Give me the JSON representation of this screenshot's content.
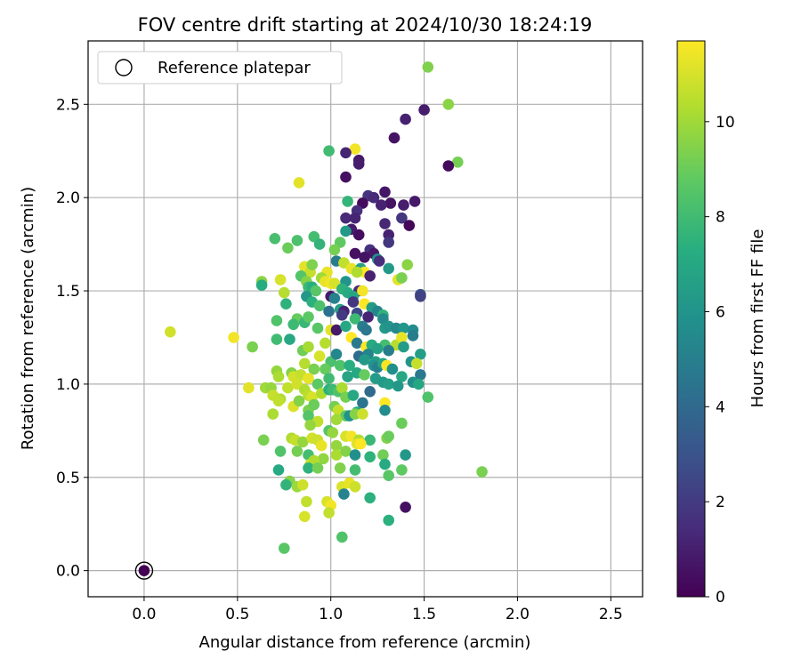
{
  "chart_data": {
    "type": "scatter",
    "title": "FOV centre drift starting at 2024/10/30 18:24:19",
    "xlabel": "Angular distance from reference (arcmin)",
    "ylabel": "Rotation from reference (arcmin)",
    "xlim": [
      -0.3,
      2.67
    ],
    "ylim": [
      -0.14,
      2.84
    ],
    "xticks": [
      0.0,
      0.5,
      1.0,
      1.5,
      2.0,
      2.5
    ],
    "xtick_labels": [
      "0.0",
      "0.5",
      "1.0",
      "1.5",
      "2.0",
      "2.5"
    ],
    "yticks": [
      0.0,
      0.5,
      1.0,
      1.5,
      2.0,
      2.5
    ],
    "ytick_labels": [
      "0.0",
      "0.5",
      "1.0",
      "1.5",
      "2.0",
      "2.5"
    ],
    "grid": true,
    "legend": {
      "position": "upper left",
      "entries": [
        "Reference platepar"
      ]
    },
    "colorbar": {
      "label": "Hours from first FF file",
      "range": [
        0,
        11.7
      ],
      "ticks": [
        0,
        2,
        4,
        6,
        8,
        10
      ],
      "tick_labels": [
        "0",
        "2",
        "4",
        "6",
        "8",
        "10"
      ],
      "colormap": "viridis"
    },
    "reference_point": {
      "x": 0.0,
      "y": 0.0,
      "c": 0.0
    },
    "points": [
      [
        1.52,
        2.7,
        9.4
      ],
      [
        1.63,
        2.5,
        9.6
      ],
      [
        1.68,
        2.19,
        9.2
      ],
      [
        1.63,
        2.17,
        0.3
      ],
      [
        1.5,
        2.47,
        0.9
      ],
      [
        1.4,
        2.42,
        1.1
      ],
      [
        1.34,
        2.32,
        0.6
      ],
      [
        1.13,
        2.26,
        11.5
      ],
      [
        0.99,
        2.25,
        8.0
      ],
      [
        1.08,
        2.24,
        1.2
      ],
      [
        1.15,
        2.2,
        0.8
      ],
      [
        1.15,
        2.18,
        0.9
      ],
      [
        1.08,
        2.11,
        0.5
      ],
      [
        0.83,
        2.08,
        11.2
      ],
      [
        1.2,
        2.01,
        1.7
      ],
      [
        1.23,
        2.0,
        1.4
      ],
      [
        1.29,
        2.03,
        0.7
      ],
      [
        1.32,
        1.97,
        0.6
      ],
      [
        1.45,
        1.98,
        0.8
      ],
      [
        1.27,
        1.96,
        1.1
      ],
      [
        1.17,
        1.97,
        0.3
      ],
      [
        1.14,
        1.93,
        1.6
      ],
      [
        1.09,
        1.98,
        7.7
      ],
      [
        1.39,
        1.96,
        0.9
      ],
      [
        1.38,
        1.89,
        1.8
      ],
      [
        1.08,
        1.89,
        1.4
      ],
      [
        1.13,
        1.89,
        1.2
      ],
      [
        1.29,
        1.86,
        1.3
      ],
      [
        1.42,
        1.85,
        0.2
      ],
      [
        1.11,
        1.83,
        0.9
      ],
      [
        1.31,
        1.8,
        1.1
      ],
      [
        1.15,
        1.8,
        0.4
      ],
      [
        1.31,
        1.76,
        1.9
      ],
      [
        1.08,
        1.82,
        6.3
      ],
      [
        0.91,
        1.79,
        8.1
      ],
      [
        0.94,
        1.75,
        7.6
      ],
      [
        0.82,
        1.77,
        8.3
      ],
      [
        0.7,
        1.78,
        8.2
      ],
      [
        0.77,
        1.73,
        9.0
      ],
      [
        1.05,
        1.76,
        8.8
      ],
      [
        1.02,
        1.72,
        9.2
      ],
      [
        1.21,
        1.72,
        1.7
      ],
      [
        1.23,
        1.7,
        0.8
      ],
      [
        1.13,
        1.7,
        0.5
      ],
      [
        1.25,
        1.67,
        5.9
      ],
      [
        1.18,
        1.68,
        0.6
      ],
      [
        1.26,
        1.66,
        1.5
      ],
      [
        1.03,
        1.66,
        4.9
      ],
      [
        1.07,
        1.65,
        10.6
      ],
      [
        1.11,
        1.62,
        11.3
      ],
      [
        1.16,
        1.62,
        6.6
      ],
      [
        1.18,
        1.6,
        11.9
      ],
      [
        1.31,
        1.62,
        6.3
      ],
      [
        1.14,
        1.6,
        10.3
      ],
      [
        0.86,
        1.63,
        11.2
      ],
      [
        0.89,
        1.6,
        10.7
      ],
      [
        0.9,
        1.64,
        9.4
      ],
      [
        0.98,
        1.6,
        11.3
      ],
      [
        1.21,
        1.58,
        1.1
      ],
      [
        1.41,
        1.64,
        9.6
      ],
      [
        1.36,
        1.56,
        11.2
      ],
      [
        1.38,
        1.57,
        9.3
      ],
      [
        1.08,
        1.55,
        6.0
      ],
      [
        0.84,
        1.58,
        8.5
      ],
      [
        0.87,
        1.55,
        9.5
      ],
      [
        0.95,
        1.57,
        10.0
      ],
      [
        0.97,
        1.55,
        11.3
      ],
      [
        1.0,
        1.54,
        11.5
      ],
      [
        1.02,
        1.54,
        11.0
      ],
      [
        0.73,
        1.56,
        11.0
      ],
      [
        0.63,
        1.55,
        9.6
      ],
      [
        0.63,
        1.53,
        7.2
      ],
      [
        0.88,
        1.52,
        7.9
      ],
      [
        0.9,
        1.52,
        7.3
      ],
      [
        0.92,
        1.5,
        8.6
      ],
      [
        0.75,
        1.49,
        10.4
      ],
      [
        1.15,
        1.5,
        1.4
      ],
      [
        1.06,
        1.51,
        7.5
      ],
      [
        1.09,
        1.49,
        7.2
      ],
      [
        1.12,
        1.47,
        6.8
      ],
      [
        1.17,
        1.5,
        11.5
      ],
      [
        1.0,
        1.47,
        0.8
      ],
      [
        1.02,
        1.46,
        5.1
      ],
      [
        1.48,
        1.48,
        2.8
      ],
      [
        1.48,
        1.47,
        2.3
      ],
      [
        0.87,
        1.47,
        6.2
      ],
      [
        0.9,
        1.44,
        7.4
      ],
      [
        1.12,
        1.44,
        1.8
      ],
      [
        1.18,
        1.43,
        11.8
      ],
      [
        0.94,
        1.42,
        8.3
      ],
      [
        0.76,
        1.43,
        7.5
      ],
      [
        1.05,
        1.4,
        6.6
      ],
      [
        1.07,
        1.39,
        1.1
      ],
      [
        1.14,
        1.38,
        2.6
      ],
      [
        1.22,
        1.41,
        6.3
      ],
      [
        1.25,
        1.39,
        5.3
      ],
      [
        1.28,
        1.37,
        7.6
      ],
      [
        0.99,
        1.39,
        4.4
      ],
      [
        1.06,
        1.37,
        2.0
      ],
      [
        1.2,
        1.36,
        1.2
      ],
      [
        1.13,
        1.35,
        7.9
      ],
      [
        1.28,
        1.35,
        5.5
      ],
      [
        0.71,
        1.34,
        8.4
      ],
      [
        0.82,
        1.35,
        8.9
      ],
      [
        0.86,
        1.33,
        7.8
      ],
      [
        0.88,
        1.36,
        8.7
      ],
      [
        0.8,
        1.32,
        7.9
      ],
      [
        0.93,
        1.3,
        8.6
      ],
      [
        1.0,
        1.29,
        11.2
      ],
      [
        1.03,
        1.29,
        0.8
      ],
      [
        1.08,
        1.31,
        7.0
      ],
      [
        1.17,
        1.31,
        5.0
      ],
      [
        1.19,
        1.29,
        4.6
      ],
      [
        1.29,
        1.3,
        6.3
      ],
      [
        1.31,
        1.31,
        6.0
      ],
      [
        1.35,
        1.3,
        5.5
      ],
      [
        1.39,
        1.3,
        6.1
      ],
      [
        1.44,
        1.29,
        5.6
      ],
      [
        1.44,
        1.26,
        4.9
      ],
      [
        0.14,
        1.28,
        10.9
      ],
      [
        0.48,
        1.25,
        11.5
      ],
      [
        0.58,
        1.2,
        9.3
      ],
      [
        0.71,
        1.24,
        8.0
      ],
      [
        0.78,
        1.24,
        7.0
      ],
      [
        0.94,
        1.15,
        11.0
      ],
      [
        0.85,
        1.18,
        9.1
      ],
      [
        0.88,
        1.2,
        10.1
      ],
      [
        0.97,
        1.22,
        10.4
      ],
      [
        1.11,
        1.25,
        11.7
      ],
      [
        1.14,
        1.22,
        4.7
      ],
      [
        1.19,
        1.2,
        11.8
      ],
      [
        1.22,
        1.21,
        7.1
      ],
      [
        1.29,
        1.21,
        8.1
      ],
      [
        1.35,
        1.21,
        10.4
      ],
      [
        1.38,
        1.25,
        11.3
      ],
      [
        1.39,
        1.2,
        6.4
      ],
      [
        1.25,
        1.19,
        6.7
      ],
      [
        1.31,
        1.18,
        4.9
      ],
      [
        1.2,
        1.16,
        5.3
      ],
      [
        1.15,
        1.15,
        4.1
      ],
      [
        1.18,
        1.13,
        6.3
      ],
      [
        1.24,
        1.12,
        6.6
      ],
      [
        1.48,
        1.16,
        6.5
      ],
      [
        1.43,
        1.12,
        6.0
      ],
      [
        1.0,
        1.12,
        8.3
      ],
      [
        1.03,
        1.16,
        5.4
      ],
      [
        1.05,
        1.1,
        8.4
      ],
      [
        1.1,
        1.1,
        7.3
      ],
      [
        1.23,
        1.1,
        6.0
      ],
      [
        1.25,
        1.09,
        5.1
      ],
      [
        1.28,
        1.11,
        6.8
      ],
      [
        1.3,
        1.1,
        11.6
      ],
      [
        1.33,
        1.08,
        5.8
      ],
      [
        1.46,
        1.11,
        10.7
      ],
      [
        1.48,
        1.05,
        4.7
      ],
      [
        0.86,
        1.11,
        10.4
      ],
      [
        0.91,
        1.08,
        9.3
      ],
      [
        0.97,
        1.08,
        8.9
      ],
      [
        0.99,
        1.03,
        8.0
      ],
      [
        1.09,
        1.04,
        6.8
      ],
      [
        1.14,
        1.06,
        7.0
      ],
      [
        1.18,
        1.05,
        8.9
      ],
      [
        1.24,
        1.03,
        6.4
      ],
      [
        1.28,
        1.01,
        6.3
      ],
      [
        1.31,
        1.0,
        6.6
      ],
      [
        1.38,
        1.04,
        7.0
      ],
      [
        1.44,
        1.01,
        5.7
      ],
      [
        1.47,
        1.0,
        6.9
      ],
      [
        0.71,
        1.07,
        9.8
      ],
      [
        0.72,
        1.04,
        10.2
      ],
      [
        0.79,
        1.06,
        9.5
      ],
      [
        0.8,
        1.04,
        10.9
      ],
      [
        0.84,
        1.05,
        10.7
      ],
      [
        0.88,
        1.03,
        11.3
      ],
      [
        0.93,
        1.0,
        8.7
      ],
      [
        0.65,
        0.98,
        10.0
      ],
      [
        0.56,
        0.98,
        11.2
      ],
      [
        0.68,
        0.98,
        9.8
      ],
      [
        0.69,
        0.94,
        10.7
      ],
      [
        0.73,
        0.92,
        10.3
      ],
      [
        0.77,
        0.98,
        10.6
      ],
      [
        0.82,
        1.0,
        10.9
      ],
      [
        0.86,
        0.97,
        10.3
      ],
      [
        0.88,
        0.94,
        10.5
      ],
      [
        0.9,
        0.93,
        11.0
      ],
      [
        0.95,
        0.95,
        10.3
      ],
      [
        0.99,
        0.97,
        7.4
      ],
      [
        1.01,
        0.97,
        7.9
      ],
      [
        1.04,
        0.96,
        8.4
      ],
      [
        1.06,
        0.98,
        10.2
      ],
      [
        1.08,
        0.93,
        9.2
      ],
      [
        1.12,
        0.94,
        7.0
      ],
      [
        1.17,
        0.9,
        4.5
      ],
      [
        1.21,
        0.96,
        4.0
      ],
      [
        1.29,
        0.9,
        11.8
      ],
      [
        1.29,
        0.86,
        5.6
      ],
      [
        1.36,
        0.99,
        6.2
      ],
      [
        1.52,
        0.93,
        8.4
      ],
      [
        0.72,
        0.91,
        10.6
      ],
      [
        0.8,
        0.88,
        11.1
      ],
      [
        0.83,
        0.91,
        9.5
      ],
      [
        0.88,
        0.86,
        9.3
      ],
      [
        0.91,
        0.89,
        9.0
      ],
      [
        1.02,
        0.88,
        9.2
      ],
      [
        1.04,
        0.86,
        10.7
      ],
      [
        1.08,
        0.83,
        8.8
      ],
      [
        1.1,
        0.83,
        5.9
      ],
      [
        1.14,
        0.85,
        7.2
      ],
      [
        1.13,
        0.84,
        9.5
      ],
      [
        1.17,
        0.84,
        10.8
      ],
      [
        0.69,
        0.84,
        10.2
      ],
      [
        0.88,
        0.83,
        8.5
      ],
      [
        0.93,
        0.8,
        10.6
      ],
      [
        1.03,
        0.81,
        10.0
      ],
      [
        1.38,
        0.79,
        9.0
      ],
      [
        0.89,
        0.78,
        9.8
      ],
      [
        0.99,
        0.75,
        8.5
      ],
      [
        1.01,
        0.74,
        9.8
      ],
      [
        1.08,
        0.72,
        11.0
      ],
      [
        1.11,
        0.72,
        11.5
      ],
      [
        1.15,
        0.7,
        10.3
      ],
      [
        1.21,
        0.7,
        7.8
      ],
      [
        1.3,
        0.71,
        9.5
      ],
      [
        1.31,
        0.72,
        9.0
      ],
      [
        0.64,
        0.7,
        9.3
      ],
      [
        0.79,
        0.71,
        10.3
      ],
      [
        0.81,
        0.7,
        10.7
      ],
      [
        0.85,
        0.69,
        9.8
      ],
      [
        0.9,
        0.71,
        10.9
      ],
      [
        0.93,
        0.7,
        10.8
      ],
      [
        0.95,
        0.67,
        11.3
      ],
      [
        1.03,
        0.67,
        9.8
      ],
      [
        1.14,
        0.68,
        11.2
      ],
      [
        1.16,
        0.68,
        11.7
      ],
      [
        1.03,
        0.62,
        10.2
      ],
      [
        1.08,
        0.64,
        9.5
      ],
      [
        1.13,
        0.62,
        5.8
      ],
      [
        1.21,
        0.61,
        7.5
      ],
      [
        1.28,
        0.62,
        9.1
      ],
      [
        1.4,
        0.62,
        6.2
      ],
      [
        0.73,
        0.64,
        8.4
      ],
      [
        0.82,
        0.64,
        9.2
      ],
      [
        0.88,
        0.62,
        8.1
      ],
      [
        0.96,
        0.6,
        9.7
      ],
      [
        0.89,
        0.57,
        10.8
      ],
      [
        0.91,
        0.59,
        10.3
      ],
      [
        0.88,
        0.55,
        7.5
      ],
      [
        0.93,
        0.55,
        9.2
      ],
      [
        1.05,
        0.55,
        9.4
      ],
      [
        1.13,
        0.54,
        8.1
      ],
      [
        1.29,
        0.57,
        7.1
      ],
      [
        1.38,
        0.54,
        8.8
      ],
      [
        1.81,
        0.53,
        9.3
      ],
      [
        0.72,
        0.54,
        7.1
      ],
      [
        1.31,
        0.51,
        8.6
      ],
      [
        0.78,
        0.48,
        9.5
      ],
      [
        0.76,
        0.46,
        7.6
      ],
      [
        0.82,
        0.45,
        9.9
      ],
      [
        0.85,
        0.46,
        10.8
      ],
      [
        1.06,
        0.45,
        11.1
      ],
      [
        1.1,
        0.47,
        11.3
      ],
      [
        1.13,
        0.45,
        10.8
      ],
      [
        1.07,
        0.41,
        5.2
      ],
      [
        1.21,
        0.39,
        7.4
      ],
      [
        0.98,
        0.37,
        11.0
      ],
      [
        1.0,
        0.35,
        11.5
      ],
      [
        0.87,
        0.37,
        10.6
      ],
      [
        0.99,
        0.31,
        10.6
      ],
      [
        0.86,
        0.29,
        11.0
      ],
      [
        1.4,
        0.34,
        0.5
      ],
      [
        1.31,
        0.27,
        7.4
      ],
      [
        1.06,
        0.18,
        8.4
      ],
      [
        0.75,
        0.12,
        8.6
      ]
    ]
  }
}
